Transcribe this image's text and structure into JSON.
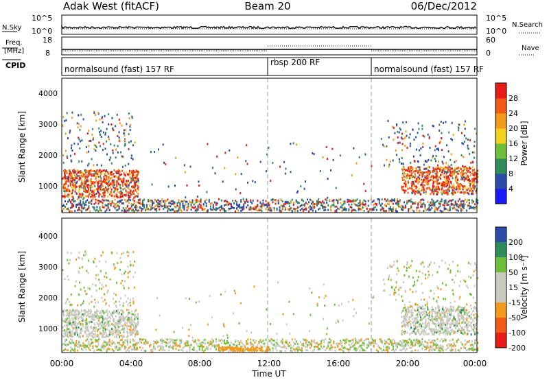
{
  "header": {
    "station": "Adak West (fitACF)",
    "beam": "Beam 20",
    "date": "06/Dec/2012"
  },
  "nsky_panel": {
    "left_label": "N.Sky",
    "right_label": "N.Search",
    "left_ticks": [
      "10^5",
      "10^0"
    ],
    "right_ticks": [
      "10^5",
      "10^0"
    ]
  },
  "freq_panel": {
    "left_label_top": "Freq.",
    "left_label_bottom": "[MHz]",
    "right_label": "Nave",
    "left_ticks": [
      "18",
      "8"
    ],
    "right_ticks": [
      "60",
      "0"
    ]
  },
  "cpid_panel": {
    "label": "CPID",
    "segments": [
      {
        "start_hour": 0,
        "end_hour": 12,
        "text": "normalsound (fast) 157 RF"
      },
      {
        "start_hour": 12,
        "end_hour": 18,
        "text": "rbsp 200 RF"
      },
      {
        "start_hour": 18,
        "end_hour": 24,
        "text": "normalsound (fast) 157 RF"
      }
    ]
  },
  "colors": {
    "power": [
      "#1a1aff",
      "#2a4ea8",
      "#2e8c5a",
      "#6dbf3a",
      "#f2d21e",
      "#f29a1a",
      "#ef5a14",
      "#e81c14"
    ],
    "velocity": [
      "#e81c14",
      "#ef5a14",
      "#f29a1a",
      "#c9c9c0",
      "#c9c9c0",
      "#6dbf3a",
      "#2e8c5a",
      "#2a4ea8"
    ]
  },
  "chart_data": [
    {
      "type": "heatmap",
      "name": "power",
      "ylabel": "Slant Range [km]",
      "colorbar_label": "Power [dB]",
      "colorbar_ticks": [
        "4",
        "8",
        "12",
        "16",
        "20",
        "24",
        "28"
      ],
      "ylim": [
        180,
        4550
      ],
      "yticks": [
        "1000",
        "2000",
        "3000",
        "4000"
      ],
      "xlim_hours": [
        0,
        24
      ],
      "vlines_hours": [
        12,
        18
      ]
    },
    {
      "type": "heatmap",
      "name": "velocity",
      "ylabel": "Slant Range [km]",
      "colorbar_label": "Velocity [m s⁻¹]",
      "colorbar_ticks": [
        "200",
        "100",
        "50",
        "15",
        "-15",
        "-50",
        "-100",
        "-200"
      ],
      "ylim": [
        180,
        4550
      ],
      "yticks": [
        "1000",
        "2000",
        "3000",
        "4000"
      ],
      "xlim_hours": [
        0,
        24
      ],
      "vlines_hours": [
        12,
        18
      ],
      "xlabel": "Time UT",
      "xticks": [
        "00:00",
        "04:00",
        "08:00",
        "12:00",
        "16:00",
        "20:00",
        "00:00"
      ]
    }
  ]
}
